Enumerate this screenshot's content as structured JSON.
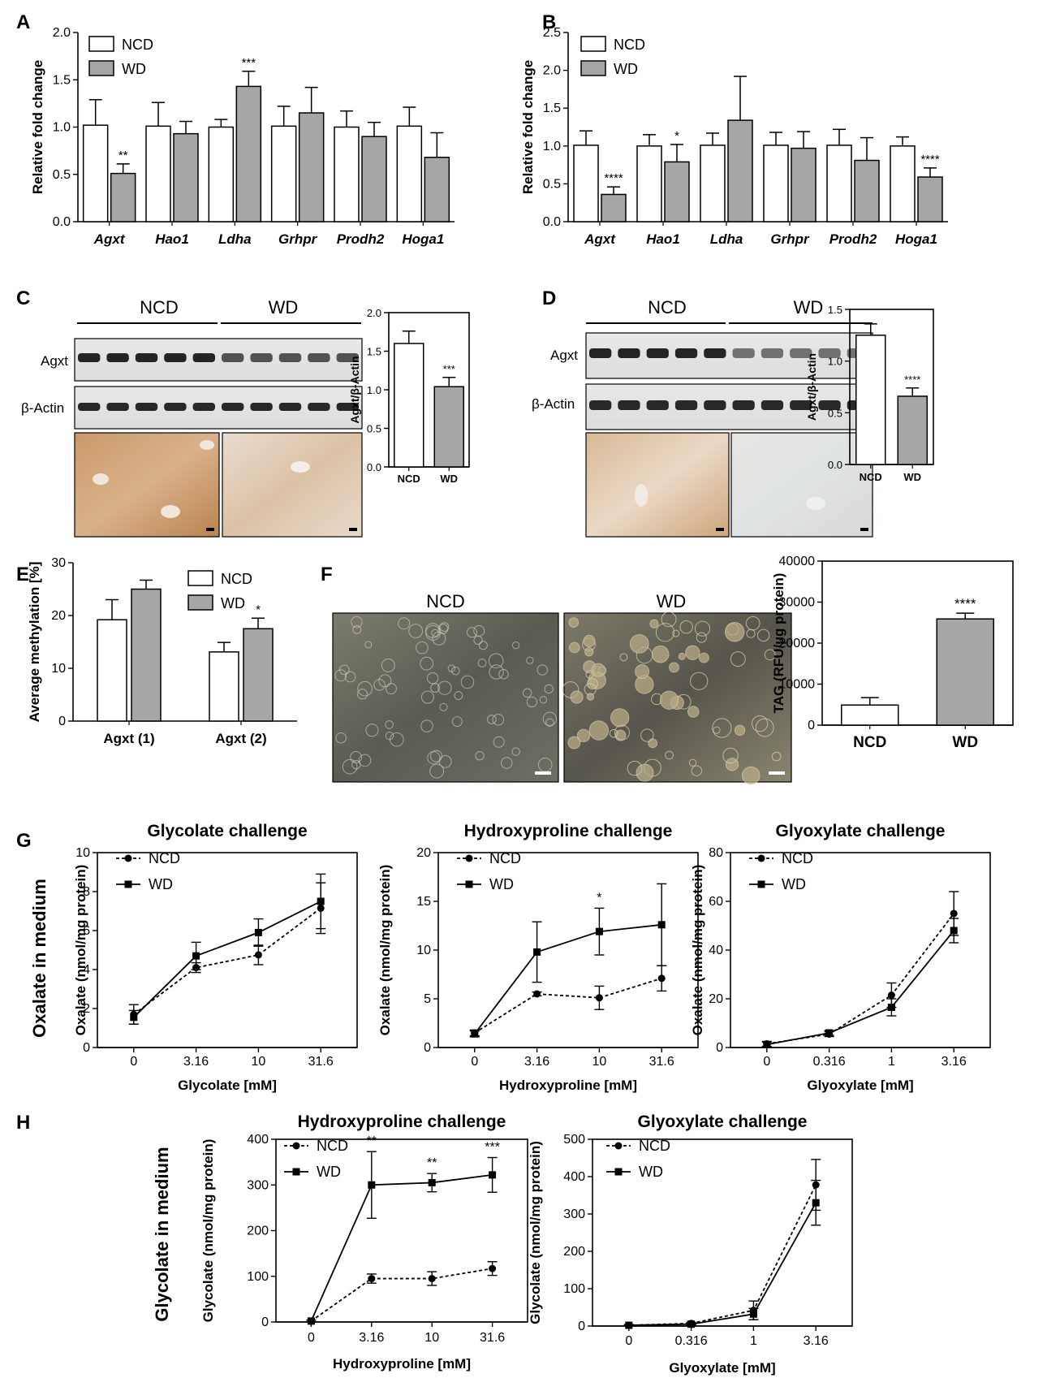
{
  "panel_labels": {
    "A": "A",
    "B": "B",
    "C": "C",
    "D": "D",
    "E": "E",
    "F": "F",
    "G": "G",
    "H": "H"
  },
  "legend": {
    "ncd": "NCD",
    "wd": "WD"
  },
  "colors": {
    "ncd_fill": "#ffffff",
    "wd_fill": "#a6a6a6",
    "stroke": "#000000"
  },
  "blots": {
    "C": {
      "group_left": "NCD",
      "group_right": "WD",
      "row1": "Agxt",
      "row2": "β-Actin"
    },
    "D": {
      "group_left": "NCD",
      "group_right": "WD",
      "row1": "Agxt",
      "row2": "β-Actin"
    }
  },
  "micrographs": {
    "F": {
      "left": "NCD",
      "right": "WD"
    }
  },
  "side_labels": {
    "G": "Oxalate in medium",
    "H": "Glycolate in medium"
  },
  "chart_data": [
    {
      "id": "A",
      "type": "bar",
      "categories": [
        "Agxt",
        "Hao1",
        "Ldha",
        "Grhpr",
        "Prodh2",
        "Hoga1"
      ],
      "series": [
        {
          "name": "NCD",
          "values": [
            1.02,
            1.01,
            1.0,
            1.01,
            1.0,
            1.01
          ],
          "errors": [
            0.27,
            0.25,
            0.08,
            0.21,
            0.17,
            0.2
          ]
        },
        {
          "name": "WD",
          "values": [
            0.51,
            0.93,
            1.43,
            1.15,
            0.9,
            0.68
          ],
          "errors": [
            0.1,
            0.13,
            0.16,
            0.27,
            0.15,
            0.26
          ]
        }
      ],
      "significance": {
        "WD": [
          "**",
          "",
          "***",
          "",
          "",
          ""
        ]
      },
      "ylabel": "Relative fold change",
      "ylim": [
        0,
        2.0
      ],
      "yticks": [
        "0.0",
        "0.5",
        "1.0",
        "1.5",
        "2.0"
      ]
    },
    {
      "id": "B",
      "type": "bar",
      "categories": [
        "Agxt",
        "Hao1",
        "Ldha",
        "Grhpr",
        "Prodh2",
        "Hoga1"
      ],
      "series": [
        {
          "name": "NCD",
          "values": [
            1.01,
            1.0,
            1.01,
            1.01,
            1.01,
            1.0
          ],
          "errors": [
            0.19,
            0.15,
            0.16,
            0.17,
            0.21,
            0.12
          ]
        },
        {
          "name": "WD",
          "values": [
            0.36,
            0.79,
            1.34,
            0.97,
            0.81,
            0.59
          ],
          "errors": [
            0.1,
            0.23,
            0.58,
            0.22,
            0.3,
            0.12
          ]
        }
      ],
      "significance": {
        "WD": [
          "****",
          "*",
          "",
          "",
          "",
          "****"
        ]
      },
      "ylabel": "Relative fold change",
      "ylim": [
        0,
        2.5
      ],
      "yticks": [
        "0.0",
        "0.5",
        "1.0",
        "1.5",
        "2.0",
        "2.5"
      ]
    },
    {
      "id": "C",
      "type": "bar",
      "categories": [
        "NCD",
        "WD"
      ],
      "values": [
        1.6,
        1.04
      ],
      "errors": [
        0.16,
        0.12
      ],
      "significance": [
        "",
        "***"
      ],
      "ylabel": "Agxt/β-Actin",
      "ylim": [
        0,
        2.0
      ],
      "yticks": [
        "0.0",
        "0.5",
        "1.0",
        "1.5",
        "2.0"
      ]
    },
    {
      "id": "D",
      "type": "bar",
      "categories": [
        "NCD",
        "WD"
      ],
      "values": [
        1.25,
        0.66
      ],
      "errors": [
        0.11,
        0.08
      ],
      "significance": [
        "",
        "****"
      ],
      "ylabel": "Agxt/β-Actin",
      "ylim": [
        0,
        1.5
      ],
      "yticks": [
        "0.0",
        "0.5",
        "1.0",
        "1.5"
      ]
    },
    {
      "id": "E",
      "type": "bar",
      "categories": [
        "Agxt (1)",
        "Agxt (2)"
      ],
      "series": [
        {
          "name": "NCD",
          "values": [
            19.2,
            13.1
          ],
          "errors": [
            3.8,
            1.8
          ]
        },
        {
          "name": "WD",
          "values": [
            25.0,
            17.5
          ],
          "errors": [
            1.7,
            2.0
          ]
        }
      ],
      "significance": {
        "WD": [
          "",
          "*"
        ]
      },
      "ylabel": "Average methylation [%]",
      "ylim": [
        0,
        30
      ],
      "yticks": [
        "0",
        "10",
        "20",
        "30"
      ]
    },
    {
      "id": "F",
      "type": "bar",
      "categories": [
        "NCD",
        "WD"
      ],
      "values": [
        4900,
        25900
      ],
      "errors": [
        1800,
        1400
      ],
      "significance": [
        "",
        "****"
      ],
      "ylabel": "TAG (RFU/µg protein)",
      "ylim": [
        0,
        40000
      ],
      "yticks": [
        "0",
        "10000",
        "20000",
        "30000",
        "40000"
      ]
    },
    {
      "id": "G1",
      "type": "line",
      "title": "Glycolate challenge",
      "categories": [
        "0",
        "3.16",
        "10",
        "31.6"
      ],
      "series": [
        {
          "name": "NCD",
          "values": [
            1.7,
            4.1,
            4.75,
            7.15
          ],
          "errors": [
            0.5,
            0.25,
            0.5,
            1.3
          ],
          "style": "dashed",
          "marker": "circle"
        },
        {
          "name": "WD",
          "values": [
            1.55,
            4.7,
            5.9,
            7.5
          ],
          "errors": [
            0.35,
            0.7,
            0.7,
            1.4
          ],
          "style": "solid",
          "marker": "square"
        }
      ],
      "xlabel": "Glycolate [mM]",
      "ylabel": "Oxalate (nmol/mg protein)",
      "ylim": [
        0,
        10
      ],
      "yticks": [
        "0",
        "2",
        "4",
        "6",
        "8",
        "10"
      ]
    },
    {
      "id": "G2",
      "type": "line",
      "title": "Hydroxyproline challenge",
      "categories": [
        "0",
        "3.16",
        "10",
        "31.6"
      ],
      "series": [
        {
          "name": "NCD",
          "values": [
            1.5,
            5.5,
            5.1,
            7.1
          ],
          "errors": [
            0.3,
            0.2,
            1.2,
            1.3
          ],
          "style": "dashed",
          "marker": "circle"
        },
        {
          "name": "WD",
          "values": [
            1.4,
            9.8,
            11.9,
            12.6
          ],
          "errors": [
            0.3,
            3.1,
            2.4,
            4.2
          ],
          "style": "solid",
          "marker": "square"
        }
      ],
      "significance": [
        "",
        "",
        "*",
        ""
      ],
      "xlabel": "Hydroxyproline [mM]",
      "ylabel": "Oxalate (nmol/mg protein)",
      "ylim": [
        0,
        20
      ],
      "yticks": [
        "0",
        "5",
        "10",
        "15",
        "20"
      ]
    },
    {
      "id": "G3",
      "type": "line",
      "title": "Glyoxylate challenge",
      "categories": [
        "0",
        "0.316",
        "1",
        "3.16"
      ],
      "series": [
        {
          "name": "NCD",
          "values": [
            1.5,
            5.5,
            21.5,
            55
          ],
          "errors": [
            1,
            1,
            5,
            9
          ],
          "style": "dashed",
          "marker": "circle"
        },
        {
          "name": "WD",
          "values": [
            1.2,
            6,
            16.5,
            48
          ],
          "errors": [
            1,
            1,
            3.5,
            5
          ],
          "style": "solid",
          "marker": "square"
        }
      ],
      "xlabel": "Glyoxylate [mM]",
      "ylabel": "Oxalate (nmol/mg protein)",
      "ylim": [
        0,
        80
      ],
      "yticks": [
        "0",
        "20",
        "40",
        "60",
        "80"
      ]
    },
    {
      "id": "H1",
      "type": "line",
      "title": "Hydroxyproline challenge",
      "categories": [
        "0",
        "3.16",
        "10",
        "31.6"
      ],
      "series": [
        {
          "name": "NCD",
          "values": [
            2,
            95,
            95,
            117
          ],
          "errors": [
            2,
            10,
            15,
            15
          ],
          "style": "dashed",
          "marker": "circle"
        },
        {
          "name": "WD",
          "values": [
            2,
            300,
            305,
            322
          ],
          "errors": [
            2,
            73,
            20,
            38
          ],
          "style": "solid",
          "marker": "square"
        }
      ],
      "significance": [
        "",
        "**",
        "**",
        "***"
      ],
      "xlabel": "Hydroxyproline [mM]",
      "ylabel": "Glycolate (nmol/mg protein)",
      "ylim": [
        0,
        400
      ],
      "yticks": [
        "0",
        "100",
        "200",
        "300",
        "400"
      ]
    },
    {
      "id": "H2",
      "type": "line",
      "title": "Glyoxylate challenge",
      "categories": [
        "0",
        "0.316",
        "1",
        "3.16"
      ],
      "series": [
        {
          "name": "NCD",
          "values": [
            2,
            7,
            42,
            378
          ],
          "errors": [
            2,
            3,
            25,
            68
          ],
          "style": "dashed",
          "marker": "circle"
        },
        {
          "name": "WD",
          "values": [
            2,
            5,
            32,
            330
          ],
          "errors": [
            2,
            3,
            15,
            60
          ],
          "style": "solid",
          "marker": "square"
        }
      ],
      "xlabel": "Glyoxylate [mM]",
      "ylabel": "Glycolate (nmol/mg protein)",
      "ylim": [
        0,
        500
      ],
      "yticks": [
        "0",
        "100",
        "200",
        "300",
        "400",
        "500"
      ]
    }
  ]
}
